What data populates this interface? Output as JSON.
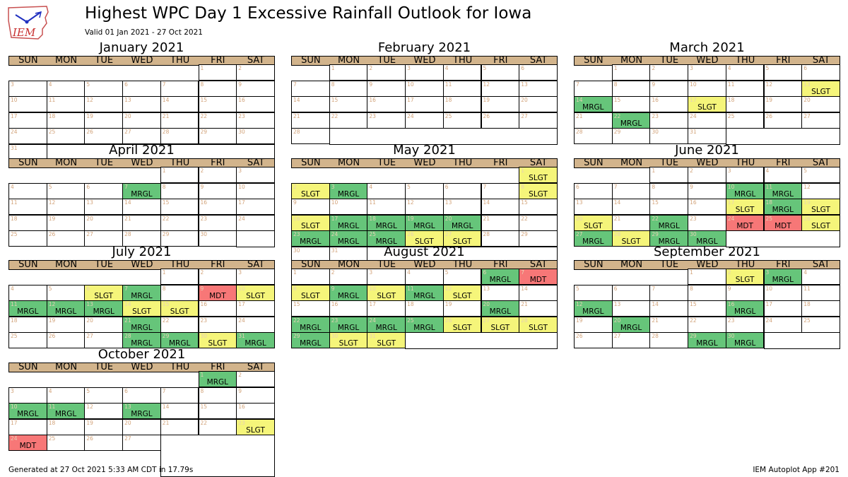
{
  "header": {
    "title": "Highest WPC Day 1 Excessive Rainfall Outlook for Iowa",
    "subtitle": "Valid 01 Jan 2021 - 27 Oct 2021",
    "logo_text": "IEM"
  },
  "footer": {
    "left": "Generated at 27 Oct 2021 5:33 AM CDT in 17.79s",
    "right": "IEM Autoplot App #201"
  },
  "colors": {
    "MRGL": "#66c57a",
    "SLGT": "#f5f57a",
    "MDT": "#f77777",
    "header_band": "#d2b48c",
    "day_number": "#d2a37a"
  },
  "chart_data": {
    "type": "table",
    "valid_start": "2021-01-01",
    "valid_end": "2021-10-27",
    "weekdays": [
      "SUN",
      "MON",
      "TUE",
      "WED",
      "THU",
      "FRI",
      "SAT"
    ],
    "categories": [
      "MRGL",
      "SLGT",
      "MDT"
    ],
    "months": [
      {
        "title": "January 2021",
        "first_weekday": 5,
        "num_days": 31,
        "last_day": 31,
        "outlooks": {}
      },
      {
        "title": "February 2021",
        "first_weekday": 1,
        "num_days": 28,
        "last_day": 28,
        "outlooks": {}
      },
      {
        "title": "March 2021",
        "first_weekday": 1,
        "num_days": 31,
        "last_day": 31,
        "outlooks": {
          "13": "SLGT",
          "14": "MRGL",
          "17": "SLGT",
          "22": "MRGL"
        }
      },
      {
        "title": "April 2021",
        "first_weekday": 4,
        "num_days": 30,
        "last_day": 30,
        "outlooks": {
          "7": "MRGL"
        }
      },
      {
        "title": "May 2021",
        "first_weekday": 6,
        "num_days": 31,
        "last_day": 31,
        "outlooks": {
          "1": "SLGT",
          "2": "SLGT",
          "3": "MRGL",
          "8": "SLGT",
          "16": "SLGT",
          "17": "MRGL",
          "18": "MRGL",
          "19": "MRGL",
          "20": "MRGL",
          "23": "MRGL",
          "24": "MRGL",
          "25": "MRGL",
          "26": "SLGT",
          "27": "SLGT"
        }
      },
      {
        "title": "June 2021",
        "first_weekday": 2,
        "num_days": 30,
        "last_day": 30,
        "outlooks": {
          "10": "MRGL",
          "11": "MRGL",
          "17": "SLGT",
          "18": "MRGL",
          "19": "SLGT",
          "20": "SLGT",
          "22": "MRGL",
          "24": "MDT",
          "25": "MDT",
          "26": "SLGT",
          "27": "MRGL",
          "28": "SLGT",
          "29": "MRGL",
          "30": "MRGL"
        }
      },
      {
        "title": "July 2021",
        "first_weekday": 4,
        "num_days": 31,
        "last_day": 31,
        "outlooks": {
          "6": "SLGT",
          "7": "MRGL",
          "9": "MDT",
          "10": "SLGT",
          "11": "MRGL",
          "12": "MRGL",
          "13": "MRGL",
          "14": "SLGT",
          "15": "SLGT",
          "21": "MRGL",
          "28": "MRGL",
          "29": "MRGL",
          "30": "SLGT",
          "31": "MRGL"
        }
      },
      {
        "title": "August 2021",
        "first_weekday": 0,
        "num_days": 31,
        "last_day": 31,
        "outlooks": {
          "6": "MRGL",
          "7": "MDT",
          "8": "SLGT",
          "9": "MRGL",
          "10": "SLGT",
          "11": "MRGL",
          "12": "SLGT",
          "20": "MRGL",
          "22": "MRGL",
          "23": "MRGL",
          "24": "MRGL",
          "25": "MRGL",
          "26": "SLGT",
          "27": "SLGT",
          "28": "SLGT",
          "29": "MRGL",
          "30": "SLGT",
          "31": "SLGT"
        }
      },
      {
        "title": "September 2021",
        "first_weekday": 3,
        "num_days": 30,
        "last_day": 30,
        "outlooks": {
          "2": "SLGT",
          "3": "MRGL",
          "12": "MRGL",
          "16": "MRGL",
          "20": "MRGL",
          "29": "MRGL",
          "30": "MRGL"
        }
      },
      {
        "title": "October 2021",
        "first_weekday": 5,
        "num_days": 31,
        "last_day": 27,
        "outlooks": {
          "1": "MRGL",
          "10": "MRGL",
          "11": "MRGL",
          "13": "MRGL",
          "23": "SLGT",
          "24": "MDT"
        }
      }
    ]
  }
}
